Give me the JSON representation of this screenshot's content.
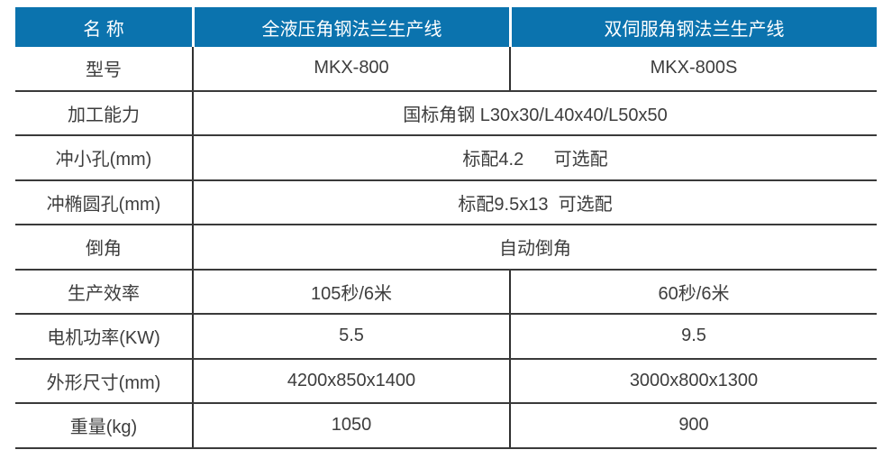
{
  "table": {
    "header": {
      "label": "名 称",
      "col1": "全液压角钢法兰生产线",
      "col2": "双伺服角钢法兰生产线"
    },
    "rows": [
      {
        "label": "型号",
        "col1": "MKX-800",
        "col2": "MKX-800S"
      },
      {
        "label": "加工能力",
        "value": "国标角钢 L30x30/L40x40/L50x50"
      },
      {
        "label": "冲小孔(mm)",
        "value": "标配4.2      可选配"
      },
      {
        "label": "冲椭圆孔(mm)",
        "value": "标配9.5x13  可选配"
      },
      {
        "label": "倒角",
        "value": "自动倒角"
      },
      {
        "label": "生产效率",
        "col1": "105秒/6米",
        "col2": "60秒/6米"
      },
      {
        "label": "电机功率(KW)",
        "col1": "5.5",
        "col2": "9.5"
      },
      {
        "label": "外形尺寸(mm)",
        "col1": "4200x850x1400",
        "col2": "3000x800x1300"
      },
      {
        "label": "重量(kg)",
        "col1": "1050",
        "col2": "900"
      }
    ],
    "colors": {
      "header_bg": "#0b73ae",
      "header_text": "#ffffff",
      "body_text": "#3d3d3d",
      "line": "#3a3a3a",
      "divider": "#303030"
    }
  }
}
